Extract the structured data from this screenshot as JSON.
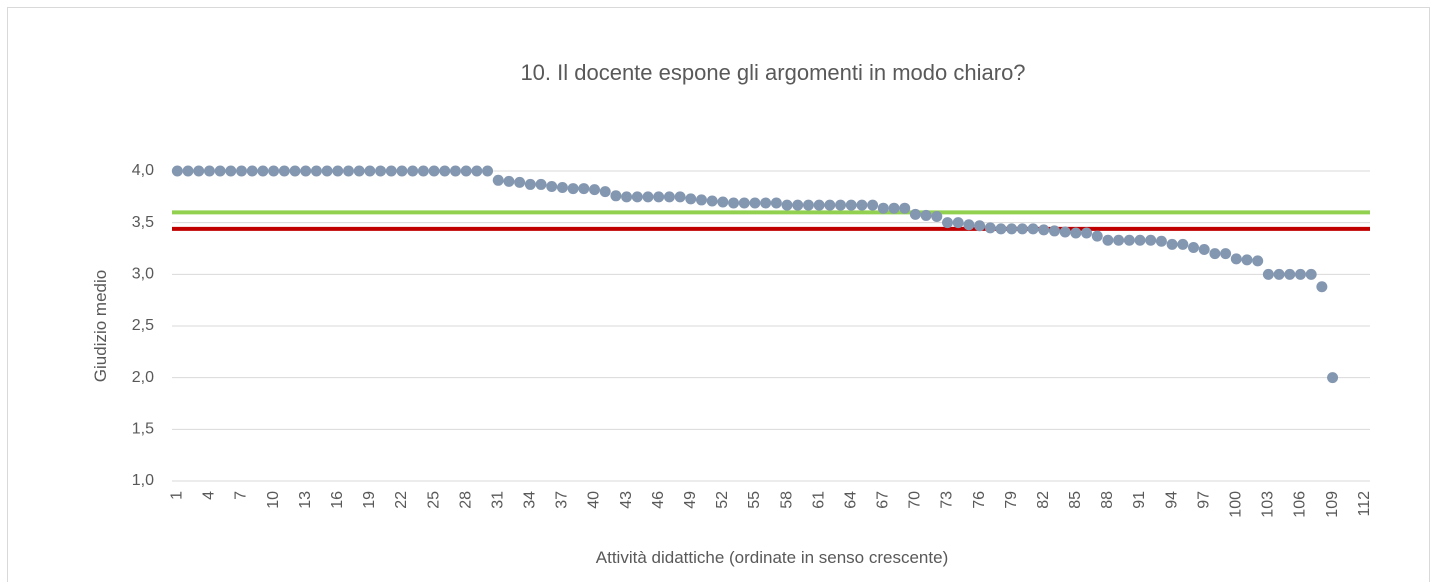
{
  "chart_data": {
    "type": "scatter",
    "title": "10. Il docente espone gli argomenti in modo chiaro?",
    "y_label": "Giudizio medio",
    "x_label": "Attività didattiche (ordinate in senso crescente)",
    "categories": [
      1,
      null,
      null,
      4,
      null,
      null,
      7,
      null,
      null,
      10,
      null,
      null,
      13,
      null,
      null,
      16,
      null,
      null,
      19,
      null,
      null,
      22,
      null,
      null,
      25,
      null,
      null,
      28,
      null,
      null,
      31,
      null,
      null,
      34,
      null,
      null,
      37,
      null,
      null,
      40,
      null,
      null,
      43,
      null,
      null,
      46,
      null,
      null,
      49,
      null,
      null,
      52,
      null,
      null,
      55,
      null,
      null,
      58,
      null,
      null,
      61,
      null,
      null,
      64,
      null,
      null,
      67,
      null,
      null,
      70,
      null,
      null,
      73,
      null,
      null,
      76,
      null,
      null,
      79,
      null,
      null,
      82,
      null,
      null,
      85,
      null,
      null,
      88,
      null,
      null,
      91,
      null,
      null,
      94,
      null,
      null,
      97,
      null,
      null,
      100,
      null,
      null,
      103,
      null,
      null,
      106,
      null,
      null,
      109,
      null,
      null,
      112
    ],
    "series": [
      {
        "color": "#8497b0",
        "values": [
          4.0,
          4.0,
          4.0,
          4.0,
          4.0,
          4.0,
          4.0,
          4.0,
          4.0,
          4.0,
          4.0,
          4.0,
          4.0,
          4.0,
          4.0,
          4.0,
          4.0,
          4.0,
          4.0,
          4.0,
          4.0,
          4.0,
          4.0,
          4.0,
          4.0,
          4.0,
          4.0,
          4.0,
          4.0,
          4.0,
          3.91,
          3.9,
          3.89,
          3.87,
          3.87,
          3.85,
          3.84,
          3.83,
          3.83,
          3.82,
          3.8,
          3.76,
          3.75,
          3.75,
          3.75,
          3.75,
          3.75,
          3.75,
          3.73,
          3.72,
          3.71,
          3.7,
          3.69,
          3.69,
          3.69,
          3.69,
          3.69,
          3.67,
          3.67,
          3.67,
          3.67,
          3.67,
          3.67,
          3.67,
          3.67,
          3.67,
          3.64,
          3.64,
          3.64,
          3.58,
          3.57,
          3.56,
          3.5,
          3.5,
          3.48,
          3.47,
          3.45,
          3.44,
          3.44,
          3.44,
          3.44,
          3.43,
          3.42,
          3.41,
          3.4,
          3.4,
          3.37,
          3.33,
          3.33,
          3.33,
          3.33,
          3.33,
          3.32,
          3.29,
          3.29,
          3.26,
          3.24,
          3.2,
          3.2,
          3.15,
          3.14,
          3.13,
          3.0,
          3.0,
          3.0,
          3.0,
          3.0,
          2.88,
          2.0,
          null,
          null,
          null
        ]
      }
    ],
    "reference_lines": [
      {
        "value": 3.6,
        "color": "#92d050"
      },
      {
        "value": 3.44,
        "color": "#c00000"
      }
    ],
    "ylim": [
      1.0,
      4.0
    ],
    "yticks": [
      {
        "value": 1.0,
        "label": "1,0"
      },
      {
        "value": 1.5,
        "label": "1,5"
      },
      {
        "value": 2.0,
        "label": "2,0"
      },
      {
        "value": 2.5,
        "label": "2,5"
      },
      {
        "value": 3.0,
        "label": "3,0"
      },
      {
        "value": 3.5,
        "label": "3,5"
      },
      {
        "value": 4.0,
        "label": "4,0"
      }
    ],
    "grid": true
  }
}
